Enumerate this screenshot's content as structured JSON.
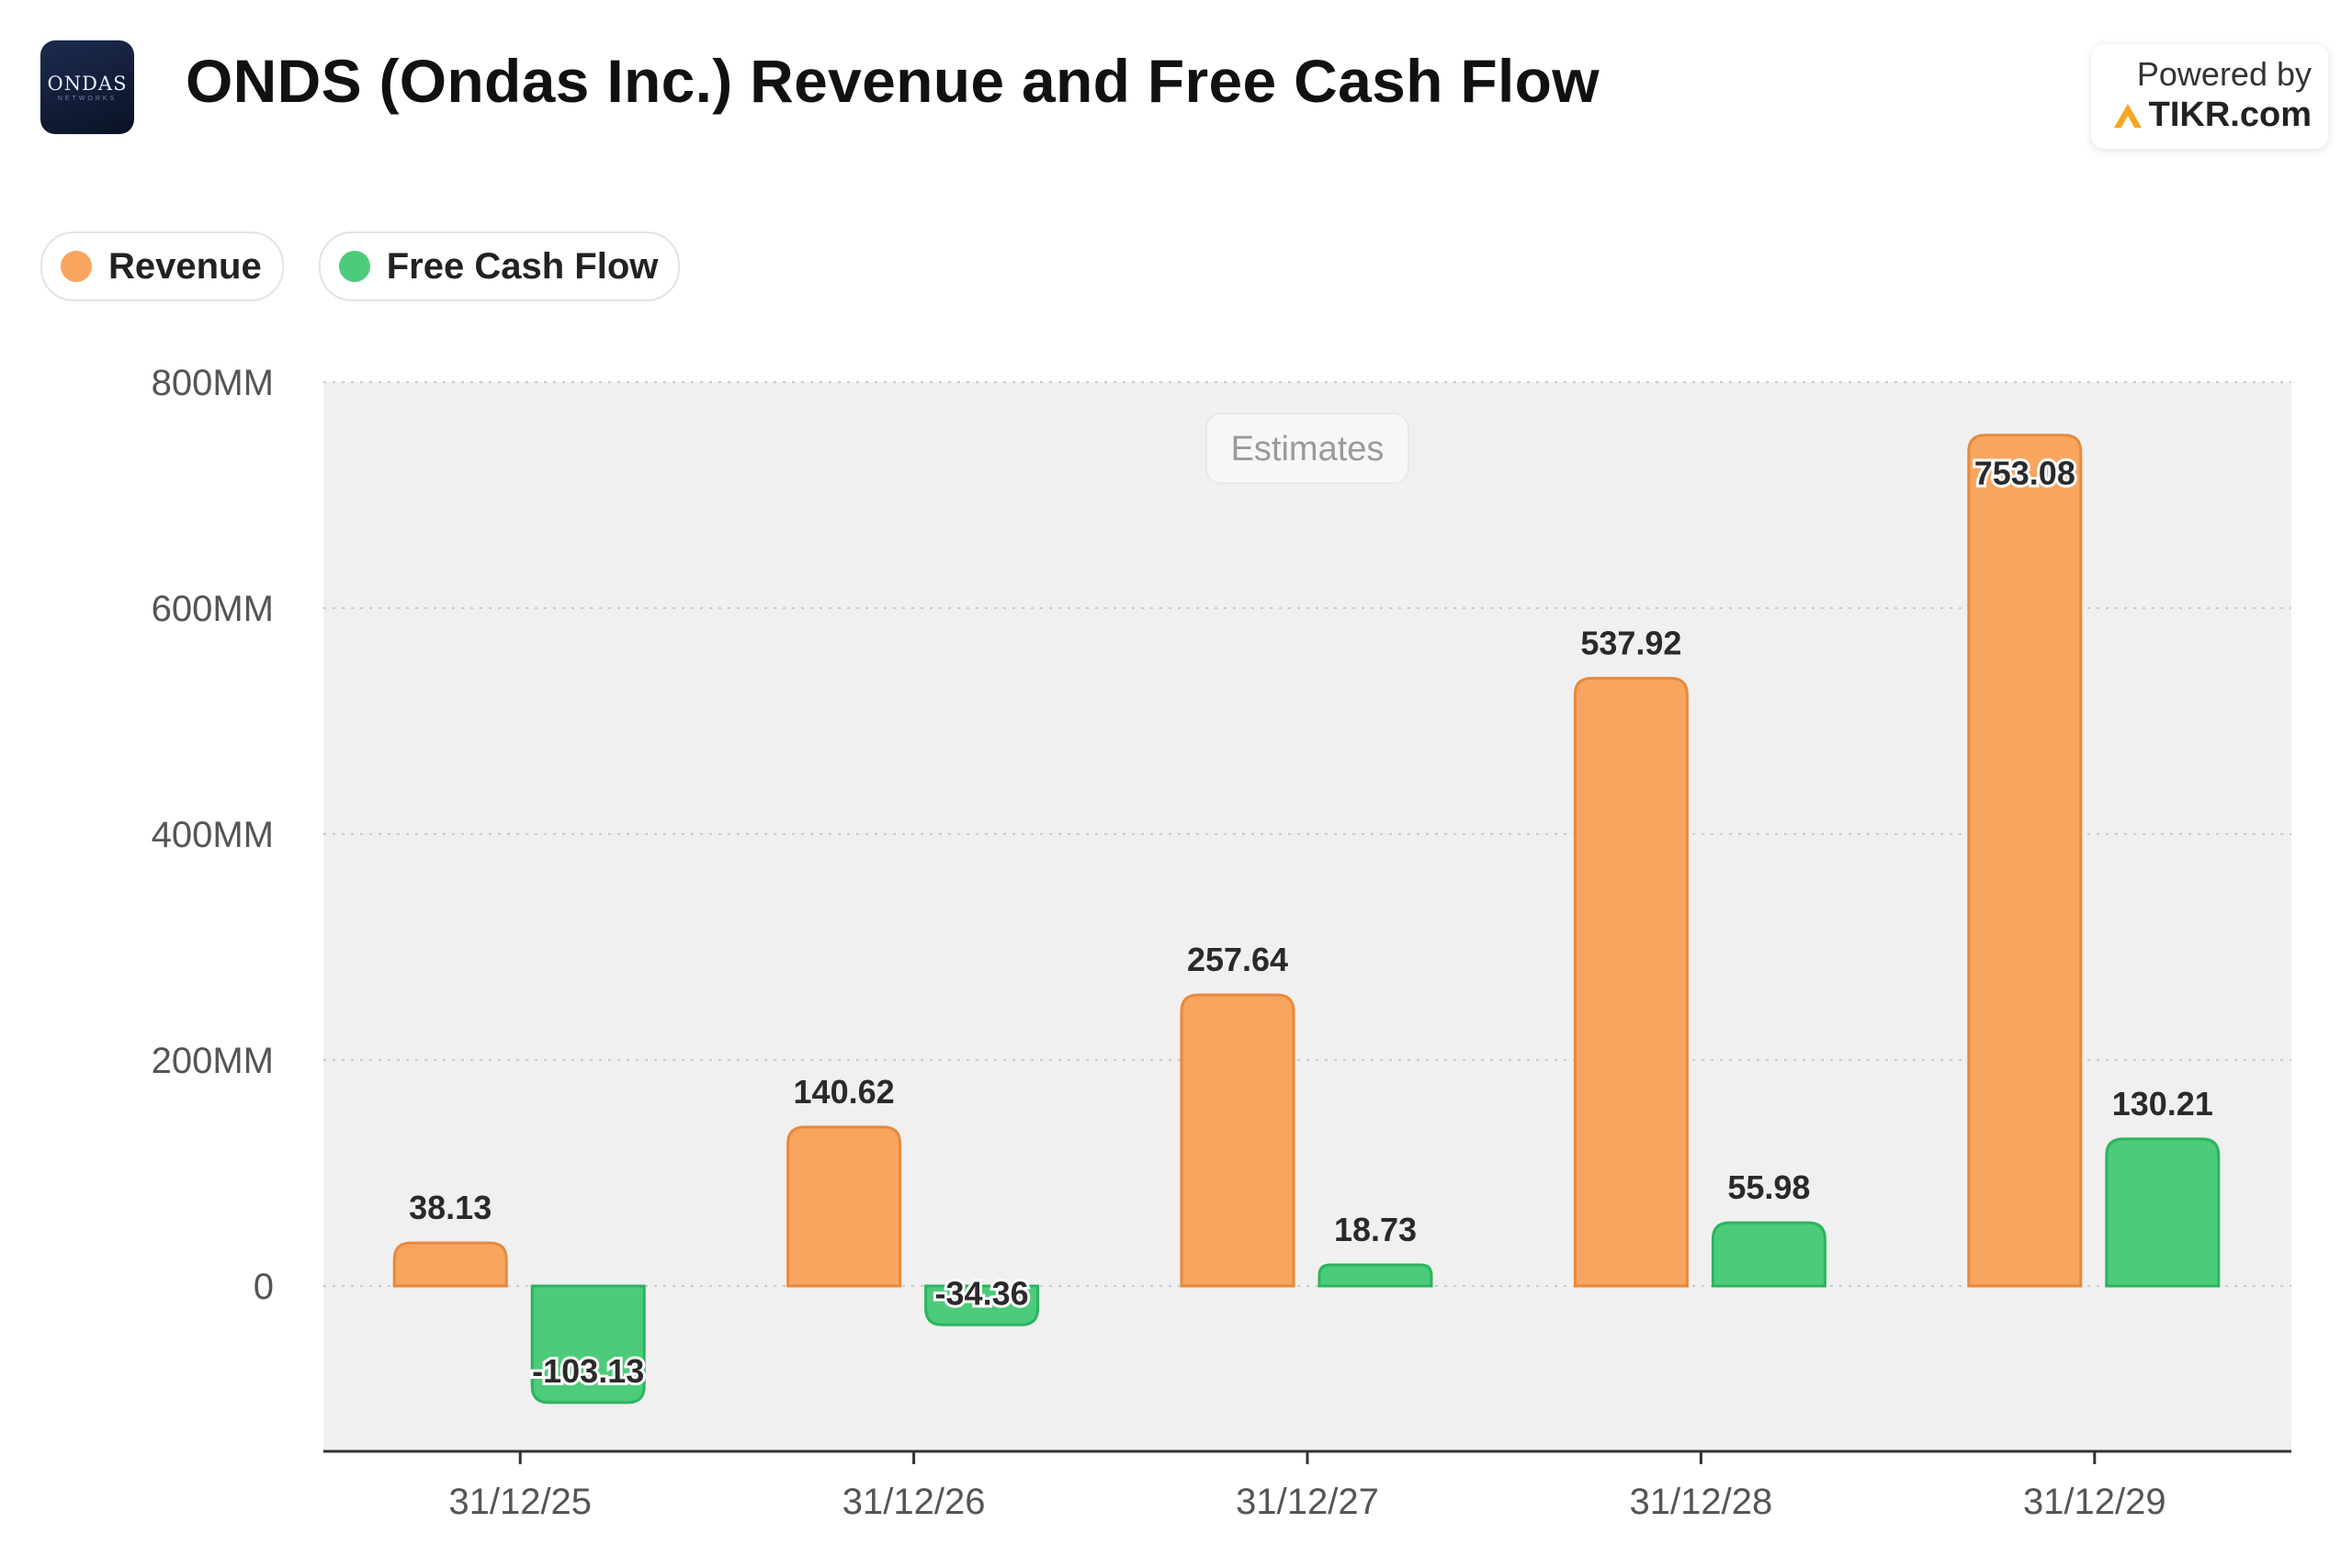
{
  "header": {
    "logo_text": "ONDAS",
    "logo_subtext": "NETWORKS",
    "title": "ONDS (Ondas Inc.) Revenue and Free Cash Flow",
    "powered_by": "Powered by",
    "brand": "TIKR.com"
  },
  "colors": {
    "revenue_fill": "#F8A55F",
    "revenue_stroke": "#E8893C",
    "fcf_fill": "#4CCB7A",
    "fcf_stroke": "#2DB35E",
    "plot_bg": "#F0F0F0",
    "tikr_accent": "#F5A623"
  },
  "estimates_label": "Estimates",
  "chart_data": {
    "type": "bar",
    "title": "ONDS (Ondas Inc.) Revenue and Free Cash Flow",
    "categories": [
      "31/12/25",
      "31/12/26",
      "31/12/27",
      "31/12/28",
      "31/12/29"
    ],
    "series": [
      {
        "name": "Revenue",
        "values": [
          38.13,
          140.62,
          257.64,
          537.92,
          753.08
        ]
      },
      {
        "name": "Free Cash Flow",
        "values": [
          -103.13,
          -34.36,
          18.73,
          55.98,
          130.21
        ]
      }
    ],
    "y_ticks": [
      0,
      200,
      400,
      600,
      800
    ],
    "y_tick_labels": [
      "0",
      "200MM",
      "400MM",
      "600MM",
      "800MM"
    ],
    "ylim": [
      -148,
      800
    ],
    "xlabel": "",
    "ylabel": "",
    "grid": true,
    "legend_position": "top-left"
  }
}
